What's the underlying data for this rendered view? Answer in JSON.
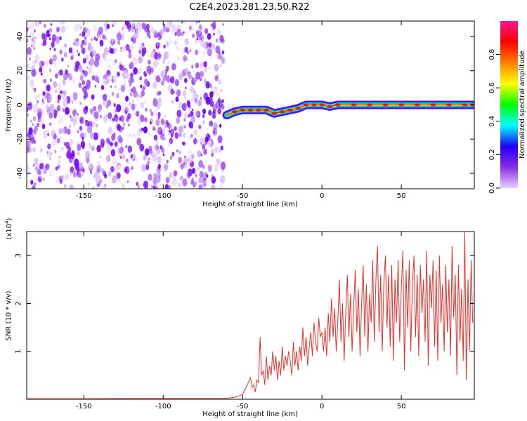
{
  "title": "C2E4.2023.281.23.50.R22",
  "chart_data": [
    {
      "type": "heatmap",
      "xlabel": "Height of straight line (km)",
      "ylabel": "Frequency (Hz)",
      "xlim": [
        -186,
        96
      ],
      "ylim": [
        -49,
        49
      ],
      "xticks": [
        -150,
        -100,
        -50,
        0,
        50
      ],
      "yticks": [
        -40,
        -20,
        0,
        20,
        40
      ],
      "colorbar": {
        "label": "Normalized spectral amplitude",
        "range": [
          0,
          1
        ],
        "ticks": [
          "0.0",
          "0.2",
          "0.4",
          "0.6",
          "0.8"
        ],
        "colors": [
          "#e6d2ff",
          "#8a2be2",
          "#2000ff",
          "#00ffff",
          "#00ff00",
          "#ffff00",
          "#ff7f00",
          "#ff0000",
          "#ff1493"
        ]
      },
      "noise_region_x": [
        -186,
        -62
      ],
      "signal_trace": {
        "x": [
          -60,
          -55,
          -50,
          -45,
          -40,
          -35,
          -30,
          -25,
          -20,
          -15,
          -10,
          -5,
          0,
          5,
          10,
          20,
          30,
          40,
          50,
          60,
          70,
          80,
          90,
          95
        ],
        "y": [
          -6,
          -4,
          -3,
          -3,
          -3,
          -3,
          -5,
          -4,
          -3,
          -2,
          0,
          0,
          0,
          -1,
          0,
          0,
          0,
          0,
          0,
          0,
          0,
          0,
          0,
          0
        ]
      }
    },
    {
      "type": "line",
      "xlabel": "Height of straight line (km)",
      "ylabel": "SNR (10 * v/v)",
      "multiplier": "(x10",
      "multiplier_exp": "4",
      "multiplier_close": ")",
      "xlim": [
        -186,
        96
      ],
      "ylim": [
        0,
        3.5
      ],
      "xticks": [
        -150,
        -100,
        -50,
        0,
        50
      ],
      "yticks": [
        1,
        2,
        3
      ],
      "series": [
        {
          "color": "#e8302a",
          "x": [
            -186,
            -150,
            -100,
            -60,
            -55,
            -50,
            -47,
            -45,
            -44,
            -43,
            -42,
            -41,
            -40,
            -39,
            -38,
            -37,
            -36,
            -35,
            -34,
            -33,
            -32,
            -31,
            -30,
            -29,
            -28,
            -27,
            -26,
            -25,
            -24,
            -23,
            -22,
            -21,
            -20,
            -19,
            -18,
            -17,
            -16,
            -15,
            -14,
            -13,
            -12,
            -11,
            -10,
            -9,
            -8,
            -7,
            -6,
            -5,
            -4,
            -3,
            -2,
            -1,
            0,
            1,
            2,
            3,
            4,
            5,
            6,
            7,
            8,
            9,
            10,
            11,
            12,
            13,
            14,
            15,
            16,
            17,
            18,
            19,
            20,
            21,
            22,
            23,
            24,
            25,
            26,
            27,
            28,
            29,
            30,
            31,
            32,
            33,
            34,
            35,
            36,
            37,
            38,
            39,
            40,
            41,
            42,
            43,
            44,
            45,
            46,
            47,
            48,
            49,
            50,
            51,
            52,
            53,
            54,
            55,
            56,
            57,
            58,
            59,
            60,
            61,
            62,
            63,
            64,
            65,
            66,
            67,
            68,
            69,
            70,
            71,
            72,
            73,
            74,
            75,
            76,
            77,
            78,
            79,
            80,
            81,
            82,
            83,
            84,
            85,
            86,
            87,
            88,
            89,
            90,
            91,
            92,
            93,
            94,
            95
          ],
          "y": [
            0.01,
            0.01,
            0.02,
            0.02,
            0.04,
            0.1,
            0.3,
            0.45,
            0.25,
            0.3,
            0.15,
            0.4,
            0.35,
            1.3,
            0.5,
            0.6,
            0.3,
            0.9,
            0.4,
            0.7,
            0.5,
            1.0,
            0.6,
            0.9,
            0.4,
            0.8,
            0.5,
            1.1,
            0.6,
            0.9,
            0.7,
            1.0,
            0.8,
            0.5,
            1.2,
            0.7,
            1.0,
            0.6,
            1.1,
            0.8,
            1.5,
            0.9,
            1.3,
            0.7,
            1.1,
            1.4,
            0.9,
            1.6,
            1.2,
            1.0,
            1.7,
            1.3,
            1.4,
            1.0,
            1.5,
            0.9,
            1.8,
            1.2,
            2.1,
            1.3,
            1.9,
            1.0,
            1.6,
            2.5,
            1.2,
            2.0,
            0.8,
            1.8,
            2.6,
            1.3,
            2.2,
            1.0,
            1.9,
            2.7,
            1.4,
            2.3,
            0.9,
            2.0,
            2.8,
            1.3,
            2.4,
            1.0,
            2.2,
            1.6,
            2.9,
            1.2,
            2.5,
            3.2,
            1.4,
            2.6,
            1.0,
            2.4,
            3.0,
            1.5,
            2.6,
            1.1,
            2.8,
            0.8,
            2.5,
            1.6,
            2.9,
            1.2,
            2.3,
            3.1,
            0.6,
            2.7,
            1.5,
            2.9,
            1.0,
            2.4,
            3.0,
            1.3,
            2.6,
            0.9,
            2.8,
            1.8,
            2.5,
            1.2,
            3.1,
            0.7,
            2.6,
            1.9,
            2.9,
            1.1,
            2.7,
            0.8,
            3.0,
            1.6,
            2.4,
            1.0,
            2.8,
            1.4,
            2.5,
            0.9,
            3.2,
            1.7,
            2.6,
            0.5,
            2.8,
            1.2,
            2.3,
            0.8,
            3.5,
            0.4,
            2.5,
            1.0,
            2.9,
            1.6
          ]
        }
      ]
    }
  ]
}
